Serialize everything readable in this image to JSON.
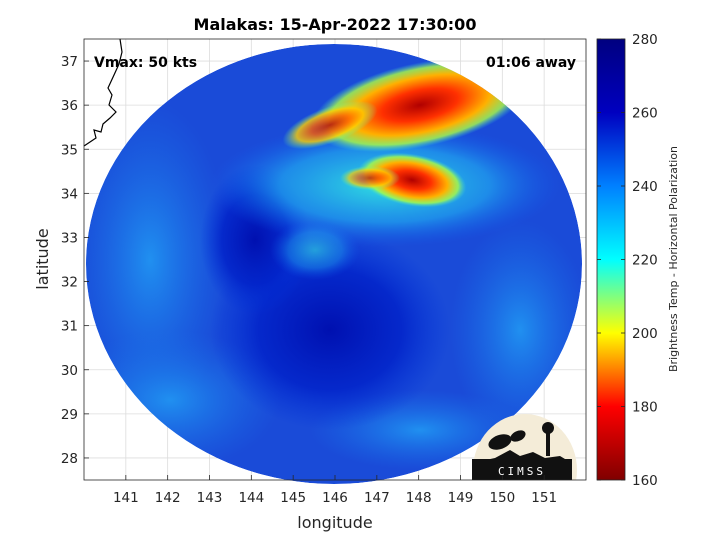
{
  "title": "Malakas: 15-Apr-2022 17:30:00",
  "vmax_label": "Vmax: 50 kts",
  "time_label": "01:06 away",
  "xlabel": "longitude",
  "ylabel": "latitude",
  "x_ticks": [
    "141",
    "142",
    "143",
    "144",
    "145",
    "146",
    "147",
    "148",
    "149",
    "150",
    "151"
  ],
  "y_ticks": [
    "37",
    "36",
    "35",
    "34",
    "33",
    "32",
    "31",
    "30",
    "29",
    "28"
  ],
  "colorbar": {
    "label": "Brightness Temp - Horizontal Polarization",
    "ticks": [
      "280",
      "260",
      "240",
      "220",
      "200",
      "180",
      "160"
    ],
    "range": [
      160,
      280
    ],
    "colors": [
      "#800000",
      "#ff0000",
      "#ffff00",
      "#00ffff",
      "#0080ff",
      "#0000c0",
      "#000080"
    ]
  },
  "logo": {
    "text": "CIMSS"
  },
  "map": {
    "lon_range": [
      140,
      152
    ],
    "lat_range": [
      27.5,
      37.5
    ],
    "swath_center": [
      146.2,
      32.5
    ],
    "background_color": "#1a4bd8",
    "coastline_color": "#000000"
  }
}
